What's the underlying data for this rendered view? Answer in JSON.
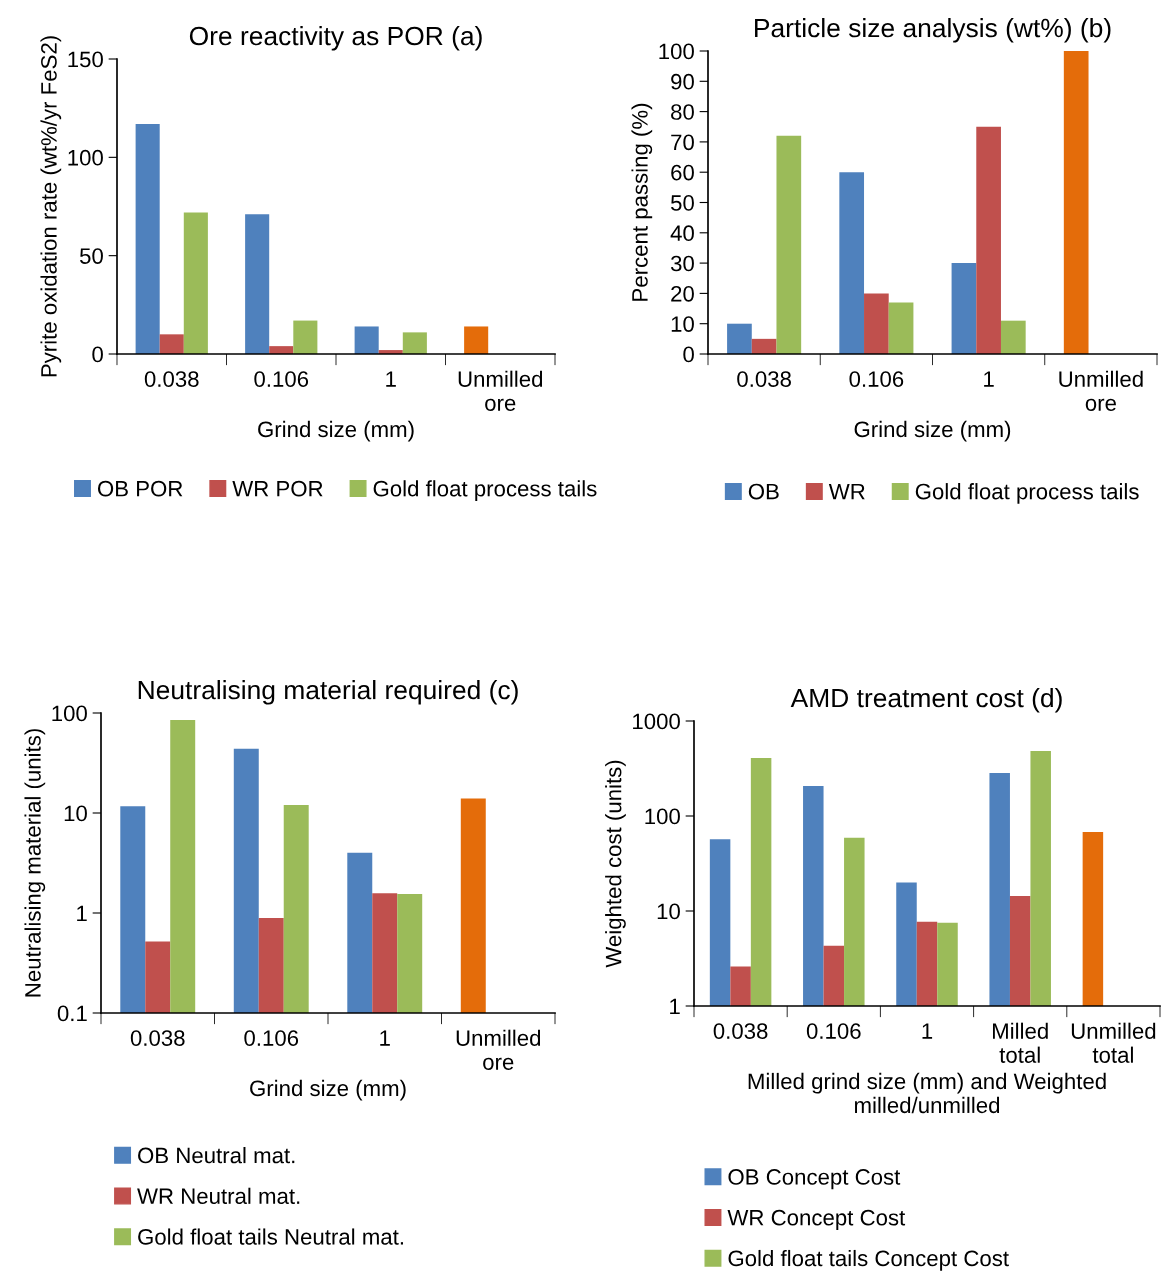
{
  "chart_data": [
    {
      "type": "bar",
      "title": "Ore reactivity as POR (a)",
      "xlabel": "Grind size (mm)",
      "ylabel": "Pyrite oxidation rate (wt%/yr FeS2)",
      "categories": [
        "0.038",
        "0.106",
        "1",
        "Unmilled\nore"
      ],
      "ylim": [
        0,
        150
      ],
      "yticks": [
        0,
        50,
        100,
        150
      ],
      "grid": false,
      "legend": "bottom",
      "series": [
        {
          "name": "OB POR",
          "color": "#4f81bd",
          "colors": [
            "#4f81bd",
            "#4f81bd",
            "#4f81bd",
            "#e46c0a"
          ],
          "values": [
            117,
            71,
            14,
            14
          ]
        },
        {
          "name": "WR POR",
          "color": "#c0504d",
          "values": [
            10,
            4,
            2,
            null
          ]
        },
        {
          "name": "Gold float process tails",
          "color": "#9bbb59",
          "values": [
            72,
            17,
            11,
            null
          ]
        }
      ]
    },
    {
      "type": "bar",
      "title": "Particle size analysis (wt%) (b)",
      "xlabel": "Grind size (mm)",
      "ylabel": "Percent passing (%)",
      "categories": [
        "0.038",
        "0.106",
        "1",
        "Unmilled\nore"
      ],
      "ylim": [
        0,
        100
      ],
      "yticks": [
        0,
        10,
        20,
        30,
        40,
        50,
        60,
        70,
        80,
        90,
        100
      ],
      "grid": false,
      "legend": "bottom",
      "series": [
        {
          "name": "OB",
          "color": "#4f81bd",
          "colors": [
            "#4f81bd",
            "#4f81bd",
            "#4f81bd",
            "#e46c0a"
          ],
          "values": [
            10,
            60,
            30,
            100
          ]
        },
        {
          "name": "WR",
          "color": "#c0504d",
          "values": [
            5,
            20,
            75,
            null
          ]
        },
        {
          "name": "Gold float process tails",
          "color": "#9bbb59",
          "values": [
            72,
            17,
            11,
            null
          ]
        }
      ]
    },
    {
      "type": "bar",
      "title": "Neutralising material required (c)",
      "xlabel": "Grind size (mm)",
      "ylabel": "Neutralising material (units)",
      "categories": [
        "0.038",
        "0.106",
        "1",
        "Unmilled\nore"
      ],
      "log": "y",
      "ylim": [
        0.1,
        100
      ],
      "yticks": [
        0.1,
        1,
        10,
        100
      ],
      "grid": false,
      "legend": "bottom",
      "series": [
        {
          "name": "OB Neutral mat.",
          "color": "#4f81bd",
          "colors": [
            "#4f81bd",
            "#4f81bd",
            "#4f81bd",
            "#e46c0a"
          ],
          "values": [
            11.7,
            44,
            4,
            14
          ]
        },
        {
          "name": "WR Neutral mat.",
          "color": "#c0504d",
          "values": [
            0.52,
            0.89,
            1.58,
            null
          ]
        },
        {
          "name": "Gold float tails Neutral mat.",
          "color": "#9bbb59",
          "values": [
            85,
            12,
            1.55,
            null
          ]
        }
      ]
    },
    {
      "type": "bar",
      "title": "AMD treatment cost (d)",
      "xlabel": "Milled grind size (mm) and Weighted\nmilled/unmilled",
      "ylabel": "Weighted cost (units)",
      "categories": [
        "0.038",
        "0.106",
        "1",
        "Milled\ntotal",
        "Unmilled\ntotal"
      ],
      "log": "y",
      "ylim": [
        1,
        1000
      ],
      "yticks": [
        1,
        10,
        100,
        1000
      ],
      "grid": false,
      "legend": "bottom",
      "series": [
        {
          "name": "OB Concept Cost",
          "color": "#4f81bd",
          "colors": [
            "#4f81bd",
            "#4f81bd",
            "#4f81bd",
            "#4f81bd",
            "#e46c0a"
          ],
          "values": [
            57,
            207,
            20,
            284,
            68
          ]
        },
        {
          "name": "WR Concept Cost",
          "color": "#c0504d",
          "values": [
            2.6,
            4.3,
            7.7,
            14.4,
            null
          ]
        },
        {
          "name": "Gold float tails Concept Cost",
          "color": "#9bbb59",
          "values": [
            408,
            59,
            7.5,
            483,
            null
          ]
        }
      ]
    }
  ]
}
